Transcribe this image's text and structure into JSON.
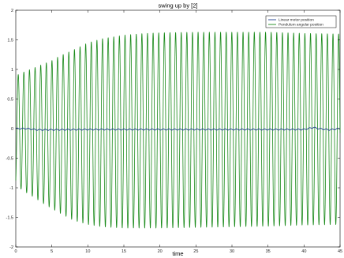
{
  "chart_data": {
    "type": "line",
    "title": "swing up by [2]",
    "xlabel": "time",
    "ylabel": "",
    "xlim": [
      0,
      45
    ],
    "ylim": [
      -2,
      2
    ],
    "xticks": [
      0,
      5,
      10,
      15,
      20,
      25,
      30,
      35,
      40,
      45
    ],
    "xtick_labels": [
      "0",
      "5",
      "10",
      "15",
      "20",
      "25",
      "30",
      "35",
      "40",
      "45"
    ],
    "yticks": [
      -2,
      -1.5,
      -1,
      -0.5,
      0,
      0.5,
      1,
      1.5,
      2
    ],
    "ytick_labels": [
      "-2",
      "-1.5",
      "-1",
      "-0.5",
      "0",
      "0.5",
      "1",
      "1.5",
      "2"
    ],
    "grid": false,
    "legend_position": "top-right",
    "series": [
      {
        "name": "Linear motor position",
        "color": "#1f3f8f",
        "kind": "near-zero with small oscillation and brief spikes at start and end",
        "x": [
          0,
          1.5,
          3,
          5,
          10,
          20,
          30,
          40,
          41.3,
          42,
          43.5,
          45
        ],
        "y": [
          0.0,
          0.0,
          -0.02,
          -0.02,
          -0.015,
          -0.015,
          -0.015,
          -0.015,
          0.02,
          0.0,
          -0.02,
          0.0
        ],
        "oscillation_amplitude": 0.01,
        "oscillation_period": 0.78
      },
      {
        "name": "Pendulum angular position",
        "color": "#1a8a1a",
        "kind": "sinusoidal oscillation with growing amplitude envelope",
        "period": 0.78,
        "x": [
          0,
          0.5,
          1,
          2,
          3,
          4,
          5,
          6,
          8,
          10,
          12,
          15,
          18,
          20,
          25,
          30,
          35,
          40,
          45
        ],
        "upper_envelope": [
          0.9,
          0.92,
          0.95,
          1.0,
          1.05,
          1.1,
          1.15,
          1.22,
          1.33,
          1.45,
          1.52,
          1.58,
          1.61,
          1.62,
          1.63,
          1.63,
          1.63,
          1.61,
          1.6
        ],
        "lower_envelope": [
          -0.95,
          -1.0,
          -1.05,
          -1.12,
          -1.2,
          -1.28,
          -1.35,
          -1.42,
          -1.55,
          -1.62,
          -1.66,
          -1.68,
          -1.68,
          -1.68,
          -1.67,
          -1.66,
          -1.65,
          -1.63,
          -1.62
        ]
      }
    ]
  }
}
